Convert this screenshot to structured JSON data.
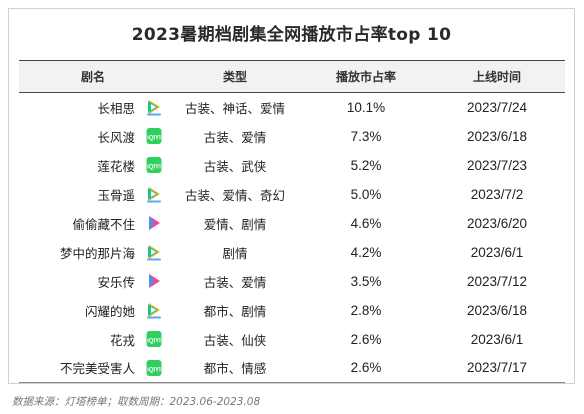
{
  "title": "2023暑期档剧集全网播放市占率top 10",
  "headers": {
    "name": "剧名",
    "genre": "类型",
    "share": "播放市占率",
    "date": "上线时间"
  },
  "platform_icons": {
    "tencent": "tencent-video-icon",
    "iqiyi": "iqiyi-icon",
    "youku": "youku-icon"
  },
  "brand_colors": {
    "tencent_green": "#1ec28b",
    "tencent_blue": "#1f9bf0",
    "tencent_orange": "#ffb020",
    "iqiyi_green": "#2fd05d",
    "youku_pink": "#ff3f8a",
    "youku_blue": "#22a5ff"
  },
  "chart_data": {
    "type": "table",
    "title": "2023暑期档剧集全网播放市占率top 10",
    "columns": [
      "剧名",
      "类型",
      "播放市占率",
      "上线时间"
    ],
    "rows": [
      {
        "name": "长相思",
        "platform": "tencent",
        "genre": "古装、神话、爱情",
        "share": "10.1%",
        "date": "2023/7/24"
      },
      {
        "name": "长风渡",
        "platform": "iqiyi",
        "genre": "古装、爱情",
        "share": "7.3%",
        "date": "2023/6/18"
      },
      {
        "name": "莲花楼",
        "platform": "iqiyi",
        "genre": "古装、武侠",
        "share": "5.2%",
        "date": "2023/7/23"
      },
      {
        "name": "玉骨遥",
        "platform": "tencent",
        "genre": "古装、爱情、奇幻",
        "share": "5.0%",
        "date": "2023/7/2"
      },
      {
        "name": "偷偷藏不住",
        "platform": "youku",
        "genre": "爱情、剧情",
        "share": "4.6%",
        "date": "2023/6/20"
      },
      {
        "name": "梦中的那片海",
        "platform": "tencent",
        "genre": "剧情",
        "share": "4.2%",
        "date": "2023/6/1"
      },
      {
        "name": "安乐传",
        "platform": "youku",
        "genre": "古装、爱情",
        "share": "3.5%",
        "date": "2023/7/12"
      },
      {
        "name": "闪耀的她",
        "platform": "tencent",
        "genre": "都市、剧情",
        "share": "2.8%",
        "date": "2023/6/18"
      },
      {
        "name": "花戎",
        "platform": "iqiyi",
        "genre": "古装、仙侠",
        "share": "2.6%",
        "date": "2023/6/1"
      },
      {
        "name": "不完美受害人",
        "platform": "iqiyi",
        "genre": "都市、情感",
        "share": "2.6%",
        "date": "2023/7/17"
      }
    ]
  },
  "footer": "数据来源：灯塔榜单；取数周期：2023.06-2023.08"
}
